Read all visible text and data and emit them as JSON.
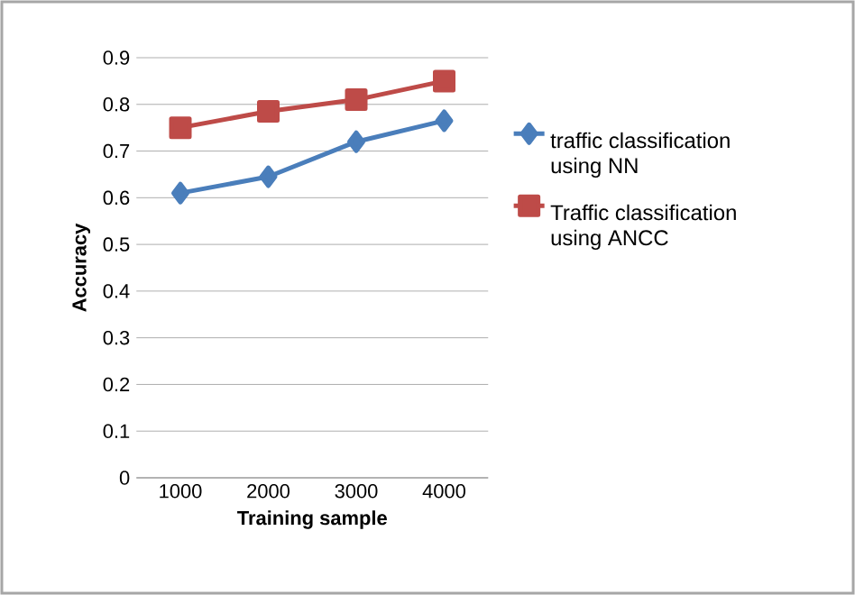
{
  "chart_data": {
    "type": "line",
    "xlabel": "Training sample",
    "ylabel": "Accuracy",
    "categories": [
      "1000",
      "2000",
      "3000",
      "4000"
    ],
    "series": [
      {
        "name": "traffic classification using NN",
        "color": "#4a7ebb",
        "marker": "diamond",
        "values": [
          0.61,
          0.645,
          0.72,
          0.765
        ]
      },
      {
        "name": "Traffic classification using ANCC",
        "color": "#be4b48",
        "marker": "square",
        "values": [
          0.75,
          0.785,
          0.81,
          0.85
        ]
      }
    ],
    "ylim": [
      0,
      0.9
    ],
    "yticks": [
      0,
      0.1,
      0.2,
      0.3,
      0.4,
      0.5,
      0.6,
      0.7,
      0.8,
      0.9
    ],
    "grid": "y",
    "legend": "right"
  }
}
